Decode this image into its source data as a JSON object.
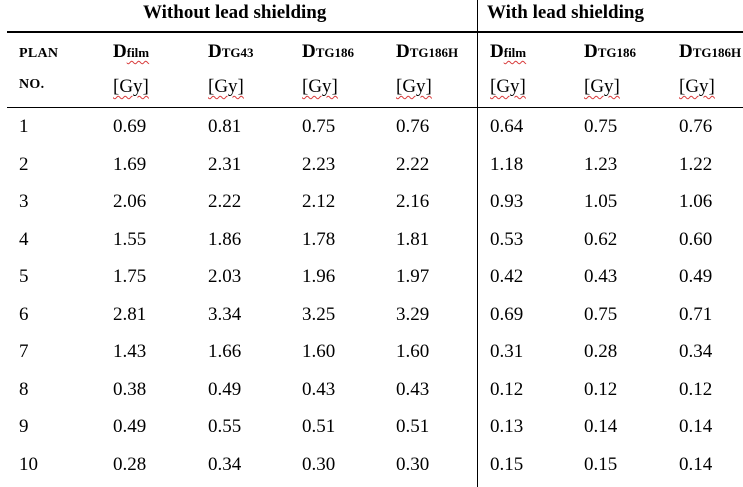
{
  "headers": {
    "group_without": "Without lead shielding",
    "group_with": "With lead shielding",
    "plan_line1": "PLAN",
    "plan_line2": "NO.",
    "cols": [
      {
        "main": "D",
        "sub": "film",
        "unit": "[Gy]",
        "spell": true
      },
      {
        "main": "D",
        "sub": "TG43",
        "unit": "[Gy]",
        "spell": false
      },
      {
        "main": "D",
        "sub": "TG186",
        "unit": "[Gy]",
        "spell": false
      },
      {
        "main": "D",
        "sub": "TG186H",
        "unit": "[Gy]",
        "spell": false
      },
      {
        "main": "D",
        "sub": "film",
        "unit": "[Gy]",
        "spell": true
      },
      {
        "main": "D",
        "sub": "TG186",
        "unit": "[Gy]",
        "spell": false
      },
      {
        "main": "D",
        "sub": "TG186H",
        "unit": "[Gy]",
        "spell": false
      }
    ]
  },
  "rows": [
    [
      "1",
      "0.69",
      "0.81",
      "0.75",
      "0.76",
      "0.64",
      "0.75",
      "0.76"
    ],
    [
      "2",
      "1.69",
      "2.31",
      "2.23",
      "2.22",
      "1.18",
      "1.23",
      "1.22"
    ],
    [
      "3",
      "2.06",
      "2.22",
      "2.12",
      "2.16",
      "0.93",
      "1.05",
      "1.06"
    ],
    [
      "4",
      "1.55",
      "1.86",
      "1.78",
      "1.81",
      "0.53",
      "0.62",
      "0.60"
    ],
    [
      "5",
      "1.75",
      "2.03",
      "1.96",
      "1.97",
      "0.42",
      "0.43",
      "0.49"
    ],
    [
      "6",
      "2.81",
      "3.34",
      "3.25",
      "3.29",
      "0.69",
      "0.75",
      "0.71"
    ],
    [
      "7",
      "1.43",
      "1.66",
      "1.60",
      "1.60",
      "0.31",
      "0.28",
      "0.34"
    ],
    [
      "8",
      "0.38",
      "0.49",
      "0.43",
      "0.43",
      "0.12",
      "0.12",
      "0.12"
    ],
    [
      "9",
      "0.49",
      "0.55",
      "0.51",
      "0.51",
      "0.13",
      "0.14",
      "0.14"
    ],
    [
      "10",
      "0.28",
      "0.34",
      "0.30",
      "0.30",
      "0.15",
      "0.15",
      "0.14"
    ]
  ]
}
